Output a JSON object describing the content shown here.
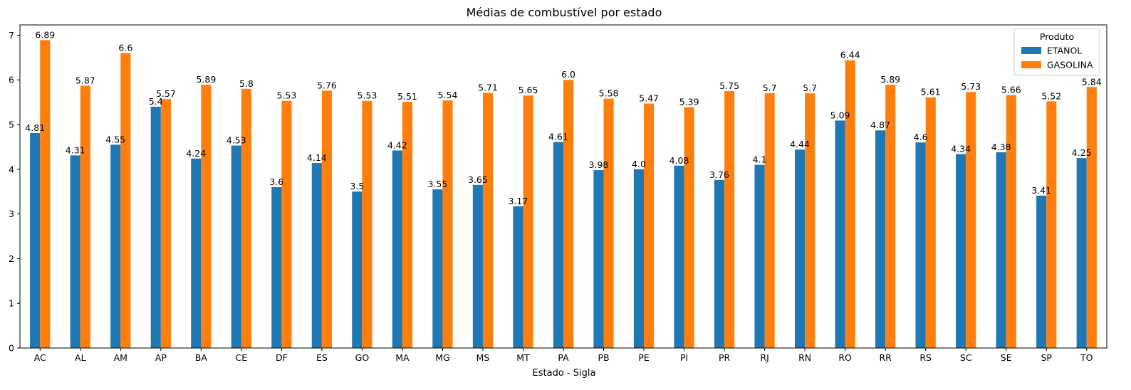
{
  "chart_data": {
    "type": "bar",
    "title": "Médias de combustível por estado",
    "xlabel": "Estado - Sigla",
    "ylabel": "",
    "ylim": [
      0,
      7.23
    ],
    "yticks": [
      0,
      1,
      2,
      3,
      4,
      5,
      6,
      7
    ],
    "grid": false,
    "legend": {
      "title": "Produto",
      "placement": "top-right"
    },
    "categories": [
      "AC",
      "AL",
      "AM",
      "AP",
      "BA",
      "CE",
      "DF",
      "ES",
      "GO",
      "MA",
      "MG",
      "MS",
      "MT",
      "PA",
      "PB",
      "PE",
      "PI",
      "PR",
      "RJ",
      "RN",
      "RO",
      "RR",
      "RS",
      "SC",
      "SE",
      "SP",
      "TO"
    ],
    "series": [
      {
        "name": "ETANOL",
        "color": "#1f77b4",
        "values": [
          4.81,
          4.31,
          4.55,
          5.4,
          4.24,
          4.53,
          3.6,
          4.14,
          3.5,
          4.42,
          3.55,
          3.65,
          3.17,
          4.61,
          3.98,
          4.0,
          4.08,
          3.76,
          4.1,
          4.44,
          5.09,
          4.87,
          4.6,
          4.34,
          4.38,
          3.41,
          4.25
        ],
        "labels": [
          "4.81",
          "4.31",
          "4.55",
          "5.4",
          "4.24",
          "4.53",
          "3.6",
          "4.14",
          "3.5",
          "4.42",
          "3.55",
          "3.65",
          "3.17",
          "4.61",
          "3.98",
          "4.0",
          "4.08",
          "3.76",
          "4.1",
          "4.44",
          "5.09",
          "4.87",
          "4.6",
          "4.34",
          "4.38",
          "3.41",
          "4.25"
        ]
      },
      {
        "name": "GASOLINA",
        "color": "#ff7f0e",
        "values": [
          6.89,
          5.87,
          6.6,
          5.57,
          5.89,
          5.8,
          5.53,
          5.76,
          5.53,
          5.51,
          5.54,
          5.71,
          5.65,
          6.0,
          5.58,
          5.47,
          5.39,
          5.75,
          5.7,
          5.7,
          6.44,
          5.89,
          5.61,
          5.73,
          5.66,
          5.52,
          5.84
        ],
        "labels": [
          "6.89",
          "5.87",
          "6.6",
          "5.57",
          "5.89",
          "5.8",
          "5.53",
          "5.76",
          "5.53",
          "5.51",
          "5.54",
          "5.71",
          "5.65",
          "6.0",
          "5.58",
          "5.47",
          "5.39",
          "5.75",
          "5.7",
          "5.7",
          "6.44",
          "5.89",
          "5.61",
          "5.73",
          "5.66",
          "5.52",
          "5.84"
        ]
      }
    ]
  }
}
